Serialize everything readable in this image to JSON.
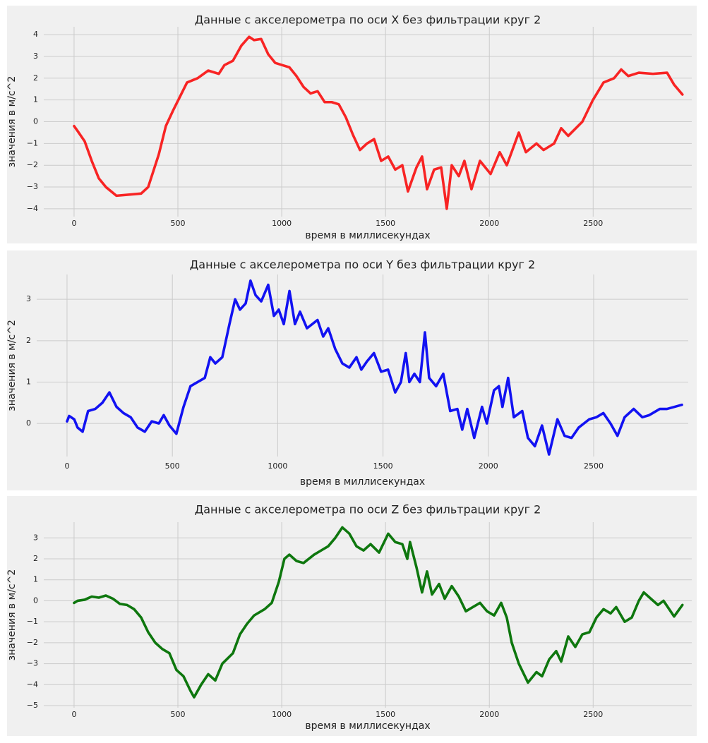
{
  "chart_data": [
    {
      "type": "line",
      "title": "Данные с акселерометра по оси X без фильтрации круг 2",
      "xlabel": "время в миллисекундах",
      "ylabel": "значения в м/с^2",
      "color": "#f82424",
      "grid": true,
      "xlim": [
        -146,
        2975
      ],
      "xticks": [
        0,
        500,
        1000,
        1500,
        2000,
        2500
      ],
      "ylim": [
        -4.36,
        4.36
      ],
      "yticks": [
        {
          "value": -4,
          "label": "−4"
        },
        {
          "value": -3,
          "label": "−3"
        },
        {
          "value": -2,
          "label": "−2"
        },
        {
          "value": -1,
          "label": "−1"
        },
        0,
        1,
        2,
        3,
        4
      ],
      "x": [
        0,
        15,
        51,
        85,
        119,
        153,
        204,
        323,
        357,
        408,
        442,
        476,
        544,
        595,
        646,
        697,
        724,
        765,
        806,
        843,
        867,
        901,
        935,
        969,
        1003,
        1037,
        1071,
        1105,
        1139,
        1173,
        1207,
        1241,
        1275,
        1309,
        1343,
        1377,
        1411,
        1445,
        1479,
        1513,
        1547,
        1581,
        1608,
        1649,
        1676,
        1700,
        1734,
        1768,
        1795,
        1819,
        1853,
        1880,
        1914,
        1955,
        2006,
        2050,
        2084,
        2142,
        2176,
        2227,
        2261,
        2312,
        2346,
        2380,
        2448,
        2499,
        2550,
        2601,
        2635,
        2669,
        2720,
        2788,
        2856,
        2890,
        2930
      ],
      "values": [
        -0.2,
        -0.4,
        -0.9,
        -1.8,
        -2.6,
        -3.0,
        -3.4,
        -3.3,
        -3.0,
        -1.5,
        -0.2,
        0.5,
        1.8,
        2.0,
        2.35,
        2.2,
        2.6,
        2.8,
        3.5,
        3.9,
        3.75,
        3.8,
        3.1,
        2.7,
        2.6,
        2.5,
        2.1,
        1.6,
        1.3,
        1.4,
        0.9,
        0.9,
        0.8,
        0.2,
        -0.6,
        -1.3,
        -1.0,
        -0.8,
        -1.8,
        -1.6,
        -2.2,
        -2.0,
        -3.2,
        -2.1,
        -1.6,
        -3.1,
        -2.2,
        -2.1,
        -4.0,
        -2.0,
        -2.5,
        -1.8,
        -3.1,
        -1.8,
        -2.4,
        -1.4,
        -2.0,
        -0.5,
        -1.4,
        -1.0,
        -1.3,
        -1.0,
        -0.3,
        -0.65,
        0.0,
        1.0,
        1.8,
        2.0,
        2.4,
        2.1,
        2.25,
        2.2,
        2.25,
        1.7,
        1.25
      ]
    },
    {
      "type": "line",
      "title": "Данные с акселерометра по оси Y без фильтрации круг 2",
      "xlabel": "время в миллисекундах",
      "ylabel": "значения в м/с^2",
      "color": "#1212f2",
      "grid": true,
      "xlim": [
        -144,
        2949
      ],
      "xticks": [
        0,
        500,
        1000,
        1500,
        2000,
        2500
      ],
      "ylim": [
        -0.8,
        3.6
      ],
      "yticks": [
        0,
        1,
        2,
        3
      ],
      "x": [
        0,
        10,
        34,
        50,
        74,
        100,
        134,
        168,
        201,
        235,
        268,
        302,
        335,
        369,
        402,
        436,
        459,
        486,
        519,
        553,
        586,
        620,
        654,
        680,
        704,
        737,
        771,
        798,
        821,
        848,
        871,
        895,
        922,
        955,
        982,
        1005,
        1029,
        1056,
        1082,
        1106,
        1139,
        1189,
        1216,
        1240,
        1273,
        1307,
        1340,
        1374,
        1397,
        1424,
        1457,
        1491,
        1524,
        1558,
        1585,
        1608,
        1625,
        1649,
        1675,
        1699,
        1719,
        1752,
        1786,
        1819,
        1853,
        1876,
        1900,
        1933,
        1970,
        1993,
        2027,
        2050,
        2067,
        2094,
        2121,
        2161,
        2188,
        2221,
        2255,
        2288,
        2328,
        2362,
        2395,
        2429,
        2479,
        2513,
        2546,
        2580,
        2613,
        2647,
        2690,
        2731,
        2764,
        2814,
        2848,
        2919
      ],
      "values": [
        0.05,
        0.18,
        0.1,
        -0.1,
        -0.2,
        0.3,
        0.35,
        0.5,
        0.75,
        0.4,
        0.25,
        0.15,
        -0.1,
        -0.2,
        0.05,
        0.0,
        0.2,
        -0.05,
        -0.25,
        0.4,
        0.9,
        1.0,
        1.1,
        1.6,
        1.45,
        1.6,
        2.4,
        3.0,
        2.75,
        2.9,
        3.45,
        3.1,
        2.95,
        3.35,
        2.6,
        2.75,
        2.4,
        3.2,
        2.4,
        2.7,
        2.3,
        2.5,
        2.1,
        2.3,
        1.8,
        1.45,
        1.35,
        1.6,
        1.3,
        1.5,
        1.7,
        1.25,
        1.3,
        0.75,
        1.0,
        1.7,
        1.0,
        1.2,
        1.0,
        2.2,
        1.1,
        0.9,
        1.2,
        0.3,
        0.35,
        -0.15,
        0.35,
        -0.35,
        0.4,
        0.0,
        0.8,
        0.9,
        0.4,
        1.1,
        0.15,
        0.3,
        -0.35,
        -0.55,
        -0.05,
        -0.75,
        0.1,
        -0.3,
        -0.35,
        -0.1,
        0.1,
        0.15,
        0.25,
        0.0,
        -0.3,
        0.15,
        0.35,
        0.15,
        0.2,
        0.35,
        0.35,
        0.45
      ]
    },
    {
      "type": "line",
      "title": "Данные с акселерометра по оси Z без фильтрации круг 2",
      "xlabel": "время в миллисекундах",
      "ylabel": "значения в м/с^2",
      "color": "#0e770e",
      "grid": true,
      "xlim": [
        -146,
        2975
      ],
      "xticks": [
        0,
        500,
        1000,
        1500,
        2000,
        2500
      ],
      "ylim": [
        -5.1,
        3.75
      ],
      "yticks": [
        {
          "value": -5,
          "label": "−5"
        },
        {
          "value": -4,
          "label": "−4"
        },
        {
          "value": -3,
          "label": "−3"
        },
        {
          "value": -2,
          "label": "−2"
        },
        {
          "value": -1,
          "label": "−1"
        },
        0,
        1,
        2,
        3
      ],
      "x": [
        0,
        17,
        51,
        85,
        119,
        153,
        187,
        221,
        255,
        289,
        323,
        357,
        391,
        425,
        459,
        493,
        527,
        561,
        578,
        612,
        646,
        680,
        714,
        765,
        799,
        833,
        867,
        918,
        952,
        986,
        1013,
        1037,
        1071,
        1105,
        1156,
        1190,
        1224,
        1258,
        1292,
        1326,
        1360,
        1394,
        1428,
        1469,
        1513,
        1547,
        1581,
        1605,
        1618,
        1649,
        1676,
        1700,
        1724,
        1758,
        1785,
        1819,
        1853,
        1887,
        1921,
        1955,
        1989,
        2023,
        2057,
        2084,
        2108,
        2142,
        2186,
        2227,
        2254,
        2288,
        2322,
        2346,
        2380,
        2414,
        2448,
        2482,
        2516,
        2550,
        2584,
        2611,
        2652,
        2686,
        2720,
        2744,
        2778,
        2812,
        2839,
        2890,
        2930
      ],
      "values": [
        -0.1,
        0.0,
        0.05,
        0.2,
        0.15,
        0.25,
        0.1,
        -0.15,
        -0.2,
        -0.4,
        -0.8,
        -1.5,
        -2.0,
        -2.3,
        -2.5,
        -3.3,
        -3.6,
        -4.3,
        -4.6,
        -4.0,
        -3.5,
        -3.8,
        -3.0,
        -2.5,
        -1.6,
        -1.1,
        -0.7,
        -0.4,
        -0.1,
        0.9,
        2.0,
        2.2,
        1.9,
        1.8,
        2.2,
        2.4,
        2.6,
        3.0,
        3.5,
        3.2,
        2.6,
        2.4,
        2.7,
        2.3,
        3.2,
        2.8,
        2.7,
        2.0,
        2.8,
        1.6,
        0.4,
        1.4,
        0.3,
        0.8,
        0.1,
        0.7,
        0.2,
        -0.5,
        -0.3,
        -0.1,
        -0.5,
        -0.7,
        -0.1,
        -0.8,
        -2.0,
        -3.0,
        -3.9,
        -3.4,
        -3.6,
        -2.8,
        -2.4,
        -2.9,
        -1.7,
        -2.2,
        -1.6,
        -1.5,
        -0.8,
        -0.4,
        -0.6,
        -0.3,
        -1.0,
        -0.8,
        0.0,
        0.4,
        0.1,
        -0.2,
        0.0,
        -0.75,
        -0.2
      ]
    }
  ]
}
